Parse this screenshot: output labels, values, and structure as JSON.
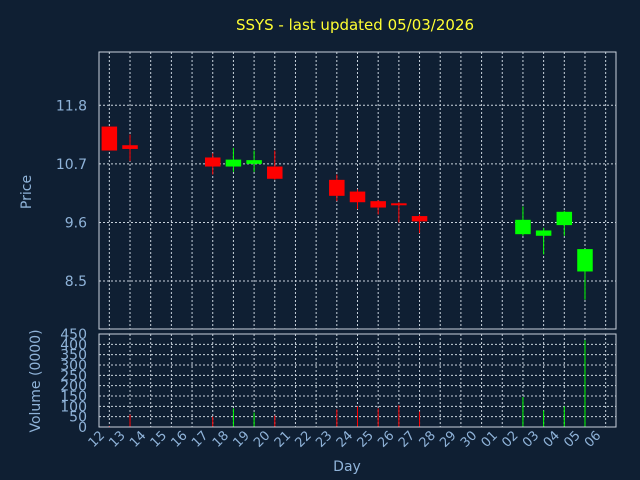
{
  "chart_data": {
    "type": "candlestick",
    "title": "SSYS - last updated 05/03/2026",
    "xlabel": "Day",
    "price_panel": {
      "ylabel": "Price",
      "yticks": [
        "8.5",
        "9.6",
        "10.7",
        "11.8"
      ],
      "ylim": [
        7.6,
        12.8
      ]
    },
    "volume_panel": {
      "ylabel": "Volume (0000)",
      "yticks": [
        "0",
        "50",
        "100",
        "150",
        "200",
        "250",
        "300",
        "350",
        "400",
        "450"
      ],
      "ylim": [
        0,
        450
      ]
    },
    "x_labels": [
      "12",
      "13",
      "14",
      "15",
      "16",
      "17",
      "18",
      "19",
      "20",
      "21",
      "22",
      "23",
      "24",
      "25",
      "26",
      "27",
      "28",
      "29",
      "30",
      "01",
      "02",
      "03",
      "04",
      "05",
      "06"
    ],
    "candles": [
      {
        "x": "12",
        "open": 11.4,
        "high": 11.4,
        "low": 10.95,
        "close": 10.95,
        "volume": 5
      },
      {
        "x": "13",
        "open": 11.05,
        "high": 11.25,
        "low": 10.75,
        "close": 10.98,
        "volume": 60
      },
      {
        "x": "17",
        "open": 10.82,
        "high": 10.9,
        "low": 10.5,
        "close": 10.65,
        "volume": 50
      },
      {
        "x": "18",
        "open": 10.65,
        "high": 11.0,
        "low": 10.55,
        "close": 10.78,
        "volume": 90
      },
      {
        "x": "19",
        "open": 10.7,
        "high": 10.95,
        "low": 10.55,
        "close": 10.77,
        "volume": 70
      },
      {
        "x": "20",
        "open": 10.65,
        "high": 10.95,
        "low": 10.4,
        "close": 10.42,
        "volume": 55
      },
      {
        "x": "23",
        "open": 10.4,
        "high": 10.5,
        "low": 10.0,
        "close": 10.1,
        "volume": 85
      },
      {
        "x": "24",
        "open": 10.18,
        "high": 10.22,
        "low": 9.85,
        "close": 9.98,
        "volume": 100
      },
      {
        "x": "25",
        "open": 10.0,
        "high": 10.02,
        "low": 9.75,
        "close": 9.88,
        "volume": 90
      },
      {
        "x": "26",
        "open": 9.96,
        "high": 9.98,
        "low": 9.6,
        "close": 9.93,
        "volume": 105
      },
      {
        "x": "27",
        "open": 9.72,
        "high": 9.75,
        "low": 9.4,
        "close": 9.62,
        "volume": 75
      },
      {
        "x": "02",
        "open": 9.38,
        "high": 9.9,
        "low": 9.35,
        "close": 9.65,
        "volume": 145
      },
      {
        "x": "03",
        "open": 9.35,
        "high": 9.5,
        "low": 9.0,
        "close": 9.45,
        "volume": 80
      },
      {
        "x": "04",
        "open": 9.55,
        "high": 9.82,
        "low": 9.35,
        "close": 9.8,
        "volume": 100
      },
      {
        "x": "05",
        "open": 8.68,
        "high": 9.1,
        "low": 8.15,
        "close": 9.1,
        "volume": 420
      }
    ],
    "colors": {
      "up": "#00ff00",
      "down": "#ff0000",
      "background": "#0f1f33",
      "grid": "#c8d2dc",
      "title": "#ffff33",
      "axis_text": "#8fb3d9"
    }
  }
}
